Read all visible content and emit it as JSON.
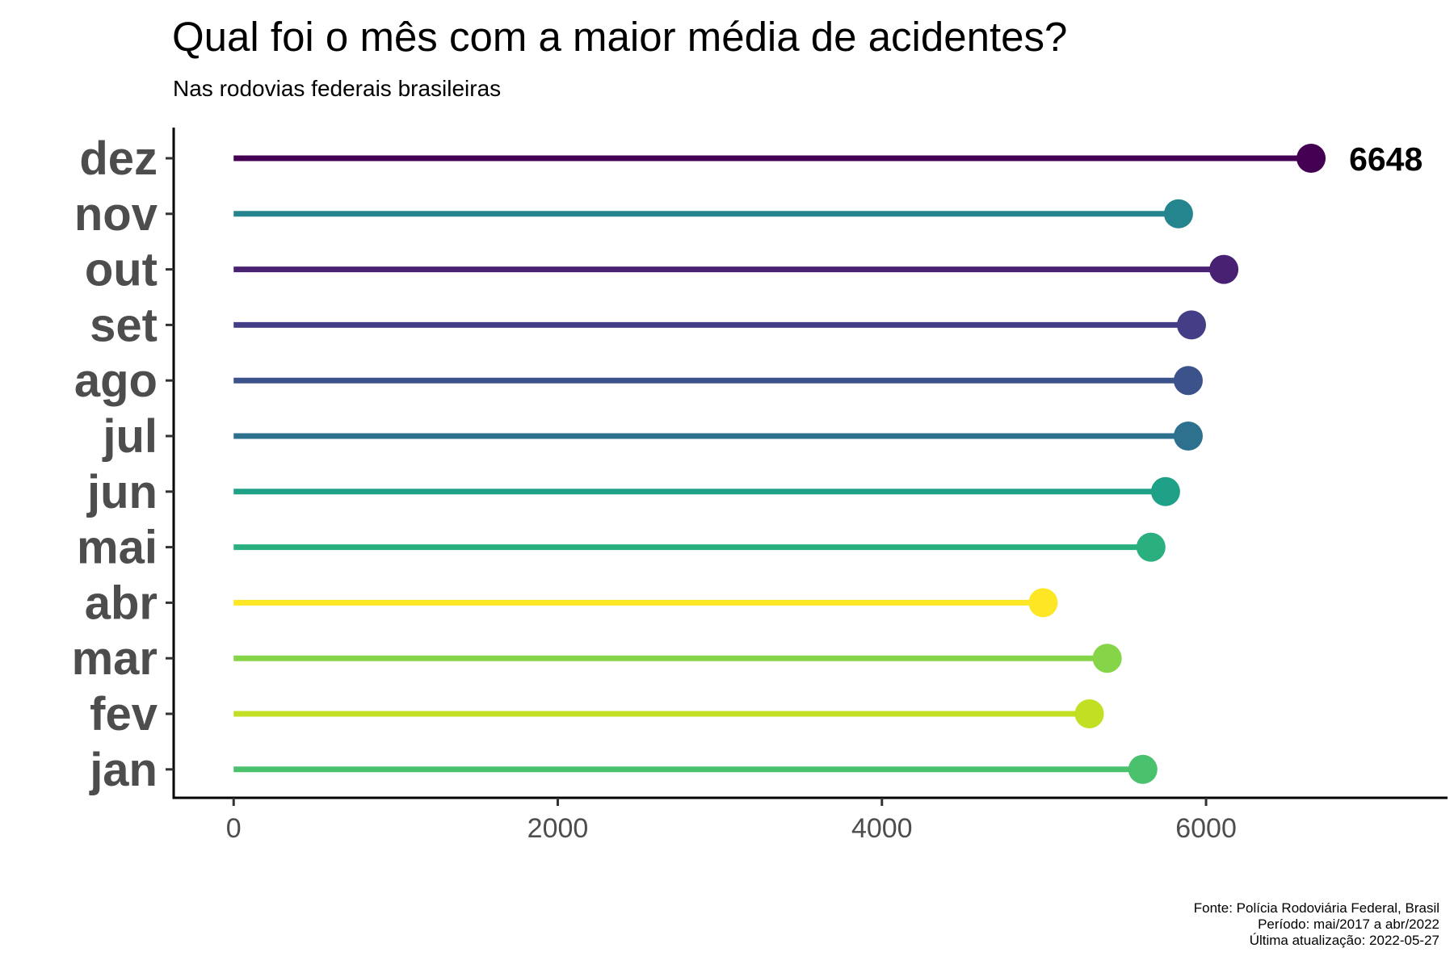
{
  "header": {
    "title": "Qual foi o mês com a maior média de acidentes?",
    "subtitle": "Nas rodovias federais brasileiras"
  },
  "caption": [
    "Fonte: Polícia Rodoviária Federal, Brasil",
    "Período: mai/2017 a abr/2022",
    "Última atualização: 2022-05-27"
  ],
  "chart_data": {
    "type": "lollipop",
    "title": "Qual foi o mês com a maior média de acidentes?",
    "subtitle": "Nas rodovias federais brasileiras",
    "xlabel": "",
    "ylabel": "",
    "categories": [
      "jan",
      "fev",
      "mar",
      "abr",
      "mai",
      "jun",
      "jul",
      "ago",
      "set",
      "out",
      "nov",
      "dez"
    ],
    "values": [
      5610,
      5280,
      5390,
      4995,
      5660,
      5750,
      5890,
      5890,
      5910,
      6110,
      5830,
      6648
    ],
    "colors": [
      "#4ac16d",
      "#c2df23",
      "#86d549",
      "#fde725",
      "#2ab07f",
      "#1fa187",
      "#2d718e",
      "#3b528b",
      "#433e85",
      "#482173",
      "#25858e",
      "#440154"
    ],
    "xlim": [
      -370,
      7490
    ],
    "xticks": [
      0,
      2000,
      4000,
      6000
    ],
    "grid": false,
    "legend": "none",
    "annotations": [
      {
        "category": "dez",
        "text": "6648"
      }
    ]
  }
}
